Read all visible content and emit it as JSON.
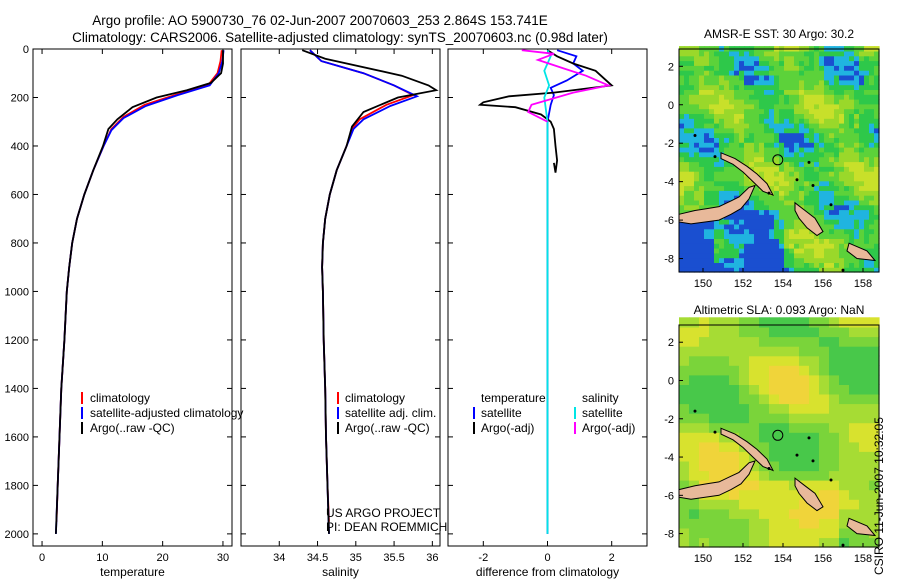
{
  "header": {
    "line1": "Argo profile: AO 5900730_76 02-Jun-2007 20070603_253 2.864S 153.741E",
    "line2": "Climatology: CARS2006. Satellite-adjusted climatology: synTS_20070603.nc (0.98d later)"
  },
  "footer_side": "CSIRO 11-Jun-2007 10:32:05",
  "credit": {
    "line1": "US ARGO PROJECT",
    "line2": "PI: DEAN ROEMMICH"
  },
  "colors": {
    "clim": "#ff0000",
    "sat": "#0000ff",
    "argo": "#000000",
    "sal_sat": "#00e5e5",
    "sal_argo": "#ff00ff",
    "land": "#e8b99a"
  },
  "chart_data": [
    {
      "type": "line",
      "id": "temperature",
      "xlabel": "temperature",
      "ylabel": "",
      "xlim": [
        -1.5,
        31.5
      ],
      "ylim": [
        2050,
        0
      ],
      "xticks": [
        0,
        10,
        20,
        30
      ],
      "yticks": [
        0,
        200,
        400,
        600,
        800,
        1000,
        1200,
        1400,
        1600,
        1800,
        2000
      ],
      "legend": [
        "climatology",
        "satellite-adjusted climatology",
        "Argo(..raw -QC)"
      ],
      "series": [
        {
          "name": "climatology",
          "color": "clim",
          "points": [
            [
              29.8,
              5
            ],
            [
              29.6,
              50
            ],
            [
              29.1,
              100
            ],
            [
              27.5,
              150
            ],
            [
              22,
              190
            ],
            [
              17,
              230
            ],
            [
              13.5,
              280
            ],
            [
              11.5,
              330
            ],
            [
              10.2,
              400
            ],
            [
              8.5,
              500
            ],
            [
              7,
              600
            ],
            [
              5.8,
              700
            ],
            [
              5,
              800
            ],
            [
              4.5,
              900
            ],
            [
              4.1,
              1000
            ],
            [
              3.7,
              1200
            ],
            [
              3.2,
              1400
            ],
            [
              2.9,
              1600
            ],
            [
              2.6,
              1800
            ],
            [
              2.4,
              1950
            ]
          ]
        },
        {
          "name": "satellite-adjusted climatology",
          "color": "sat",
          "points": [
            [
              30.1,
              5
            ],
            [
              29.9,
              50
            ],
            [
              29.3,
              100
            ],
            [
              27.8,
              150
            ],
            [
              22.5,
              190
            ],
            [
              17.2,
              235
            ],
            [
              13.5,
              285
            ],
            [
              11.5,
              335
            ],
            [
              10.2,
              400
            ],
            [
              8.5,
              500
            ],
            [
              7,
              600
            ],
            [
              5.8,
              700
            ],
            [
              5,
              800
            ],
            [
              4.5,
              900
            ],
            [
              4.1,
              1000
            ],
            [
              3.7,
              1200
            ],
            [
              3.2,
              1400
            ],
            [
              2.9,
              1600
            ],
            [
              2.6,
              1800
            ],
            [
              2.3,
              2000
            ]
          ]
        },
        {
          "name": "Argo(..raw -QC)",
          "color": "argo",
          "points": [
            [
              30,
              5
            ],
            [
              30,
              60
            ],
            [
              29.7,
              100
            ],
            [
              28,
              140
            ],
            [
              24,
              170
            ],
            [
              19,
              200
            ],
            [
              15,
              240
            ],
            [
              12.5,
              290
            ],
            [
              11,
              330
            ],
            [
              10.1,
              400
            ],
            [
              8.5,
              500
            ],
            [
              7,
              600
            ],
            [
              5.8,
              700
            ],
            [
              5,
              800
            ],
            [
              4.5,
              900
            ],
            [
              4.1,
              1000
            ],
            [
              3.7,
              1200
            ],
            [
              3.2,
              1400
            ],
            [
              2.9,
              1600
            ],
            [
              2.6,
              1800
            ],
            [
              2.3,
              2000
            ]
          ]
        }
      ]
    },
    {
      "type": "line",
      "id": "salinity",
      "xlabel": "salinity",
      "ylabel": "",
      "xlim": [
        33.5,
        36.1
      ],
      "ylim": [
        2050,
        0
      ],
      "xticks": [
        34,
        34.5,
        35,
        35.5,
        36
      ],
      "legend": [
        "climatology",
        "satellite adj. clim.",
        "Argo(..raw -QC)"
      ],
      "series": [
        {
          "name": "climatology",
          "color": "clim",
          "points": [
            [
              34.4,
              5
            ],
            [
              34.55,
              50
            ],
            [
              35.1,
              100
            ],
            [
              35.5,
              150
            ],
            [
              35.75,
              190
            ],
            [
              35.4,
              230
            ],
            [
              35.05,
              290
            ],
            [
              34.95,
              330
            ],
            [
              34.88,
              400
            ],
            [
              34.75,
              500
            ],
            [
              34.66,
              600
            ],
            [
              34.6,
              700
            ],
            [
              34.57,
              800
            ],
            [
              34.56,
              900
            ],
            [
              34.57,
              1000
            ],
            [
              34.58,
              1200
            ],
            [
              34.6,
              1400
            ],
            [
              34.61,
              1600
            ],
            [
              34.63,
              1800
            ],
            [
              34.65,
              1950
            ]
          ]
        },
        {
          "name": "satellite adj. clim.",
          "color": "sat",
          "points": [
            [
              34.4,
              5
            ],
            [
              34.55,
              50
            ],
            [
              35.1,
              100
            ],
            [
              35.5,
              150
            ],
            [
              35.8,
              195
            ],
            [
              35.45,
              235
            ],
            [
              35.1,
              290
            ],
            [
              34.97,
              330
            ],
            [
              34.88,
              400
            ],
            [
              34.75,
              500
            ],
            [
              34.66,
              600
            ],
            [
              34.6,
              700
            ],
            [
              34.57,
              800
            ],
            [
              34.56,
              900
            ],
            [
              34.57,
              1000
            ],
            [
              34.58,
              1200
            ],
            [
              34.6,
              1400
            ],
            [
              34.61,
              1600
            ],
            [
              34.63,
              1800
            ],
            [
              34.65,
              2000
            ]
          ]
        },
        {
          "name": "Argo(..raw -QC)",
          "color": "argo",
          "points": [
            [
              34.3,
              5
            ],
            [
              34.6,
              40
            ],
            [
              35.6,
              110
            ],
            [
              35.95,
              150
            ],
            [
              36.05,
              170
            ],
            [
              35.55,
              200
            ],
            [
              35.1,
              260
            ],
            [
              34.95,
              320
            ],
            [
              34.88,
              400
            ],
            [
              34.75,
              500
            ],
            [
              34.66,
              600
            ],
            [
              34.6,
              700
            ],
            [
              34.57,
              800
            ],
            [
              34.56,
              900
            ],
            [
              34.57,
              1000
            ],
            [
              34.58,
              1200
            ],
            [
              34.6,
              1400
            ],
            [
              34.61,
              1600
            ],
            [
              34.63,
              1800
            ],
            [
              34.65,
              2000
            ]
          ]
        }
      ]
    },
    {
      "type": "line",
      "id": "difference",
      "xlabel": "difference from climatology",
      "ylabel": "",
      "xlim": [
        -3.1,
        3.1
      ],
      "ylim": [
        2050,
        0
      ],
      "xticks": [
        -2,
        0,
        2
      ],
      "legend_headers": [
        "temperature",
        "salinity"
      ],
      "legend": [
        "satellite",
        "Argo(-adj)",
        "satellite",
        "Argo(-adj)"
      ],
      "series": [
        {
          "name": "temperature satellite",
          "color": "sat",
          "points": [
            [
              0.3,
              5
            ],
            [
              0.9,
              30
            ],
            [
              0.8,
              60
            ],
            [
              1.1,
              90
            ],
            [
              0.6,
              130
            ],
            [
              0.1,
              160
            ],
            [
              0.2,
              190
            ],
            [
              0.1,
              230
            ],
            [
              0,
              300
            ],
            [
              0,
              500
            ],
            [
              0,
              2000
            ]
          ]
        },
        {
          "name": "temperature Argo(-adj)",
          "color": "argo",
          "points": [
            [
              0,
              5
            ],
            [
              0.3,
              30
            ],
            [
              0.8,
              60
            ],
            [
              1.5,
              90
            ],
            [
              2,
              150
            ],
            [
              0.2,
              180
            ],
            [
              -1.2,
              195
            ],
            [
              -2,
              220
            ],
            [
              -2.1,
              230
            ],
            [
              -1,
              240
            ],
            [
              -0.2,
              270
            ],
            [
              0.1,
              300
            ],
            [
              0.2,
              330
            ],
            [
              0.25,
              400
            ],
            [
              0.3,
              460
            ],
            [
              0.25,
              510
            ],
            [
              0.2,
              470
            ]
          ]
        },
        {
          "name": "salinity satellite",
          "color": "sal_sat",
          "points": [
            [
              0,
              5
            ],
            [
              0.1,
              30
            ],
            [
              0,
              60
            ],
            [
              -0.1,
              90
            ],
            [
              0.05,
              150
            ],
            [
              -0.1,
              200
            ],
            [
              0,
              300
            ],
            [
              0,
              500
            ],
            [
              0,
              700
            ],
            [
              0,
              1000
            ],
            [
              0,
              1500
            ],
            [
              0,
              2000
            ]
          ]
        },
        {
          "name": "salinity Argo(-adj)",
          "color": "sal_argo",
          "points": [
            [
              -0.8,
              5
            ],
            [
              0.2,
              20
            ],
            [
              -0.3,
              45
            ],
            [
              0.5,
              80
            ],
            [
              1.2,
              110
            ],
            [
              1.9,
              150
            ],
            [
              0.8,
              180
            ],
            [
              -0.5,
              230
            ],
            [
              -0.6,
              260
            ],
            [
              0,
              300
            ]
          ]
        }
      ]
    }
  ],
  "maps": [
    {
      "title": "AMSR-E SST: 30 Argo: 30.2",
      "xticks": [
        150,
        152,
        154,
        156,
        158
      ],
      "yticks": [
        2,
        0,
        -2,
        -4,
        -6,
        -8
      ],
      "xlim": [
        148.8,
        158.8
      ],
      "ylim": [
        -8.7,
        2.9
      ],
      "argo_lon": 153.741,
      "argo_lat": -2.864
    },
    {
      "title": "Altimetric SLA: 0.093 Argo: NaN",
      "xticks": [
        150,
        152,
        154,
        156,
        158
      ],
      "yticks": [
        2,
        0,
        -2,
        -4,
        -6,
        -8
      ],
      "xlim": [
        148.8,
        158.8
      ],
      "ylim": [
        -8.7,
        2.9
      ],
      "argo_lon": 153.741,
      "argo_lat": -2.864
    }
  ]
}
